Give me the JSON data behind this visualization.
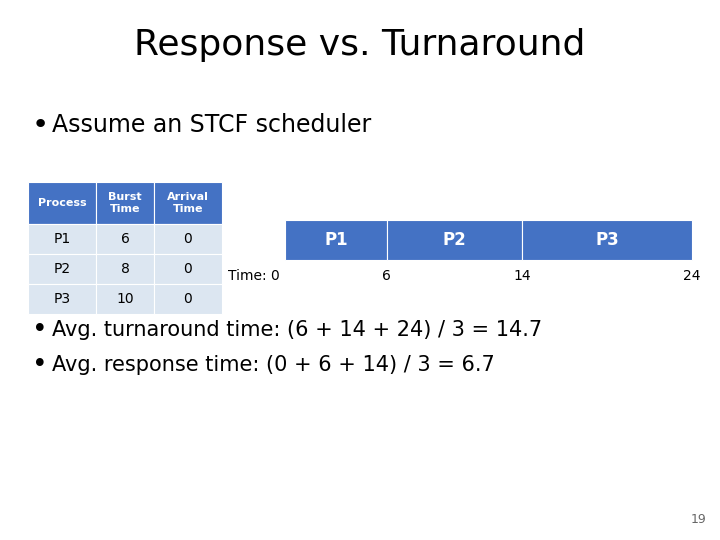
{
  "title": "Response vs. Turnaround",
  "subtitle": "Assume an STCF scheduler",
  "bg_color": "#ffffff",
  "title_fontsize": 26,
  "subtitle_fontsize": 17,
  "table_header": [
    "Process",
    "Burst\nTime",
    "Arrival\nTime"
  ],
  "table_rows": [
    [
      "P1",
      "6",
      "0"
    ],
    [
      "P2",
      "8",
      "0"
    ],
    [
      "P3",
      "10",
      "0"
    ]
  ],
  "table_header_color": "#4472c4",
  "table_header_text_color": "#ffffff",
  "table_row_color": "#dce6f1",
  "table_text_color": "#000000",
  "gantt_processes": [
    "P1",
    "P2",
    "P3"
  ],
  "gantt_starts": [
    0,
    6,
    14
  ],
  "gantt_ends": [
    6,
    14,
    24
  ],
  "gantt_color": "#4472c4",
  "gantt_text_color": "#ffffff",
  "gantt_times": [
    6,
    14,
    24
  ],
  "total_time": 24,
  "bullet1": "Avg. turnaround time: (6 + 14 + 24) / 3 = 14.7",
  "bullet2": "Avg. response time: (0 + 6 + 14) / 3 = 6.7",
  "page_number": "19",
  "bullet_fontsize": 15,
  "header_fontsize": 8,
  "row_fontsize": 10,
  "gantt_fontsize": 12,
  "time_label_fontsize": 10
}
